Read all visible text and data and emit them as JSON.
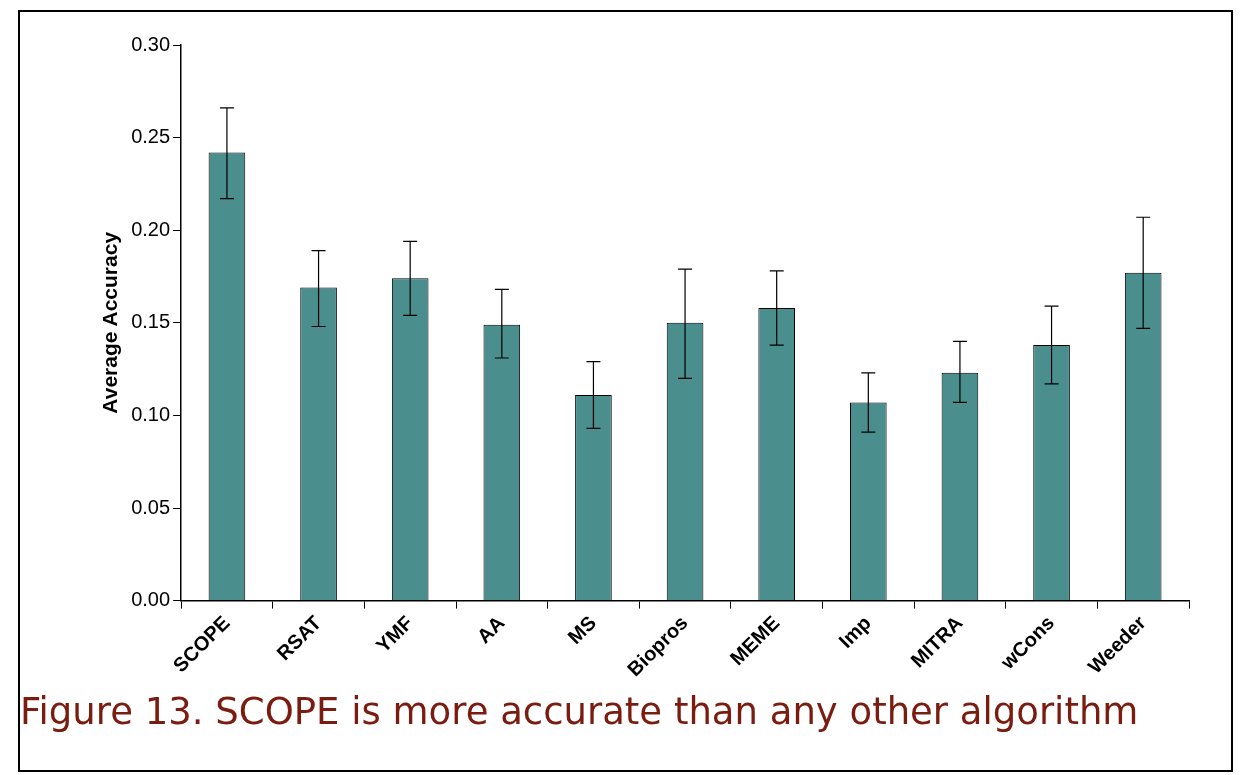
{
  "chart_data": {
    "type": "bar",
    "ylabel": "Average Accuracy",
    "categories": [
      "SCOPE",
      "RSAT",
      "YMF",
      "AA",
      "MS",
      "Biopros",
      "MEME",
      "Imp",
      "MITRA",
      "wCons",
      "Weeder"
    ],
    "values": [
      0.242,
      0.169,
      0.174,
      0.149,
      0.111,
      0.15,
      0.158,
      0.107,
      0.123,
      0.138,
      0.177
    ],
    "errors": [
      [
        0.217,
        0.266
      ],
      [
        0.148,
        0.189
      ],
      [
        0.154,
        0.194
      ],
      [
        0.131,
        0.168
      ],
      [
        0.093,
        0.129
      ],
      [
        0.12,
        0.179
      ],
      [
        0.138,
        0.178
      ],
      [
        0.091,
        0.123
      ],
      [
        0.107,
        0.14
      ],
      [
        0.117,
        0.159
      ],
      [
        0.147,
        0.207
      ]
    ],
    "color": "#4a8e8e",
    "ylim": [
      0,
      0.3
    ],
    "yticks": [
      {
        "value": 0,
        "label": "0.00"
      },
      {
        "value": 0.05,
        "label": "0.05"
      },
      {
        "value": 0.1,
        "label": "0.10"
      },
      {
        "value": 0.15,
        "label": "0.15"
      },
      {
        "value": 0.2,
        "label": "0.20"
      },
      {
        "value": 0.25,
        "label": "0.25"
      },
      {
        "value": 0.3,
        "label": "0.30"
      }
    ],
    "grid": false,
    "legend": false,
    "annotations": [
      "Figure 13. SCOPE is more accurate than any other algorithm"
    ]
  }
}
